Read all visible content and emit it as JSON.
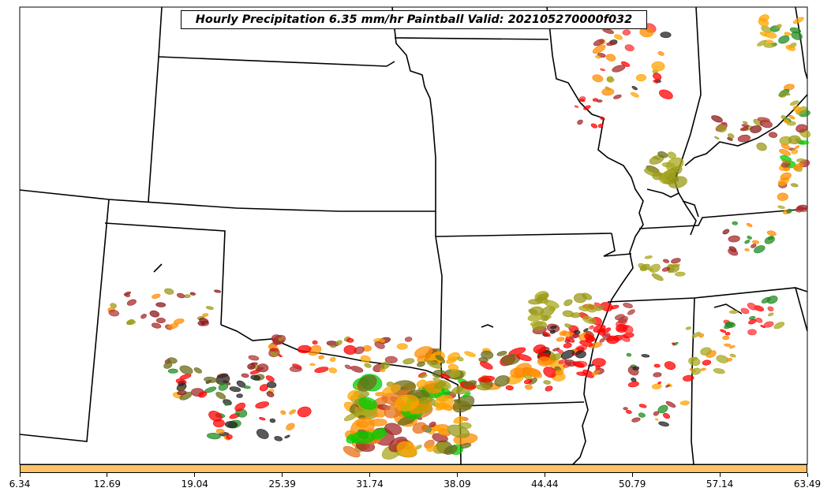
{
  "title": "Hourly Precipitation 6.35 mm/hr Paintball Valid: 202105270000f032",
  "colorbar": {
    "color": "#ffc266",
    "tick_labels": [
      "6.34",
      "12.69",
      "19.04",
      "25.39",
      "31.74",
      "38.09",
      "44.44",
      "50.79",
      "57.14",
      "63.49"
    ]
  },
  "colors": {
    "ensemble_members": [
      "#8b1a1a",
      "#a52a2a",
      "#b03a3a",
      "#9a9a1a",
      "#a8a81e",
      "#ff8c00",
      "#ffa500",
      "#ff0000",
      "#ff3333",
      "#228b22",
      "#00cc00",
      "#222222",
      "#6b6b1a",
      "#e8701a"
    ]
  }
}
